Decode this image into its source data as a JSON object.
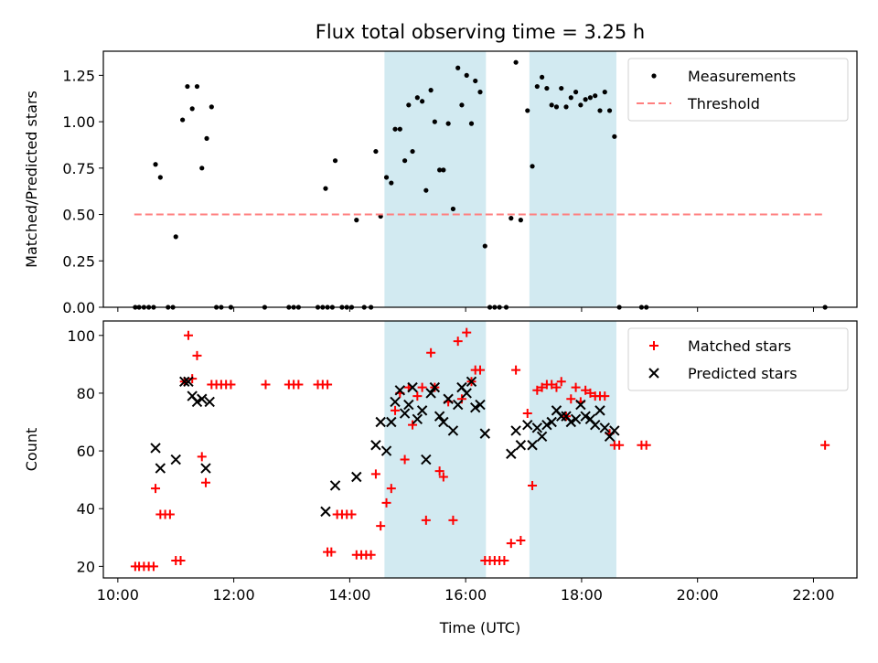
{
  "title": "Flux total observing time = 3.25 h",
  "colors": {
    "measurements": "#000000",
    "threshold": "#ff7f7f",
    "matched": "#ff0000",
    "predicted": "#000000",
    "span_fill": "#add8e6",
    "axes": "#000000"
  },
  "chart_data": [
    {
      "type": "scatter",
      "title": "Flux total observing time = 3.25 h",
      "xlabel": "",
      "ylabel": "Matched/Predicted stars",
      "x_unit": "time of day (UTC), HH:MM",
      "xlim": [
        "09:45",
        "22:45"
      ],
      "ylim": [
        0,
        1.38
      ],
      "yticks": [
        0,
        0.25,
        0.5,
        0.75,
        1.0,
        1.25
      ],
      "ytick_labels": [
        "0.00",
        "0.25",
        "0.50",
        "0.75",
        "1.00",
        "1.25"
      ],
      "xticks": [
        "10:00",
        "12:00",
        "14:00",
        "16:00",
        "18:00",
        "20:00",
        "22:00"
      ],
      "legend_position": "top-right",
      "shaded_spans": [
        [
          "14:36",
          "16:21"
        ],
        [
          "17:06",
          "18:36"
        ]
      ],
      "series": [
        {
          "name": "Measurements",
          "marker": "dot",
          "color": "#000000",
          "points": [
            [
              "10:18",
              0
            ],
            [
              "10:22",
              0
            ],
            [
              "10:27",
              0
            ],
            [
              "10:32",
              0
            ],
            [
              "10:37",
              0
            ],
            [
              "10:39",
              0.77
            ],
            [
              "10:44",
              0.7
            ],
            [
              "10:52",
              0
            ],
            [
              "10:57",
              0
            ],
            [
              "11:00",
              0.38
            ],
            [
              "11:07",
              1.01
            ],
            [
              "11:12",
              1.19
            ],
            [
              "11:17",
              1.07
            ],
            [
              "11:22",
              1.19
            ],
            [
              "11:27",
              0.75
            ],
            [
              "11:32",
              0.91
            ],
            [
              "11:37",
              1.08
            ],
            [
              "11:42",
              0
            ],
            [
              "11:47",
              0
            ],
            [
              "11:57",
              0
            ],
            [
              "12:32",
              0
            ],
            [
              "12:57",
              0
            ],
            [
              "13:02",
              0
            ],
            [
              "13:07",
              0
            ],
            [
              "13:27",
              0
            ],
            [
              "13:32",
              0
            ],
            [
              "13:37",
              0
            ],
            [
              "13:42",
              0
            ],
            [
              "13:35",
              0.64
            ],
            [
              "13:45",
              0.79
            ],
            [
              "13:52",
              0
            ],
            [
              "13:57",
              0
            ],
            [
              "14:02",
              0
            ],
            [
              "14:07",
              0.47
            ],
            [
              "14:15",
              0
            ],
            [
              "14:22",
              0
            ],
            [
              "14:27",
              0.84
            ],
            [
              "14:32",
              0.49
            ],
            [
              "14:38",
              0.7
            ],
            [
              "14:43",
              0.67
            ],
            [
              "14:47",
              0.96
            ],
            [
              "14:52",
              0.96
            ],
            [
              "14:57",
              0.79
            ],
            [
              "15:01",
              1.09
            ],
            [
              "15:05",
              0.84
            ],
            [
              "15:10",
              1.13
            ],
            [
              "15:15",
              1.11
            ],
            [
              "15:19",
              0.63
            ],
            [
              "15:24",
              1.17
            ],
            [
              "15:28",
              1.0
            ],
            [
              "15:33",
              0.74
            ],
            [
              "15:37",
              0.74
            ],
            [
              "15:42",
              0.99
            ],
            [
              "15:47",
              0.53
            ],
            [
              "15:52",
              1.29
            ],
            [
              "15:56",
              1.09
            ],
            [
              "16:01",
              1.25
            ],
            [
              "16:06",
              0.99
            ],
            [
              "16:10",
              1.22
            ],
            [
              "16:15",
              1.16
            ],
            [
              "16:20",
              0.33
            ],
            [
              "16:25",
              0
            ],
            [
              "16:30",
              0
            ],
            [
              "16:35",
              0
            ],
            [
              "16:42",
              0
            ],
            [
              "16:47",
              0.48
            ],
            [
              "16:52",
              1.32
            ],
            [
              "16:57",
              0.47
            ],
            [
              "17:04",
              1.06
            ],
            [
              "17:09",
              0.76
            ],
            [
              "17:14",
              1.19
            ],
            [
              "17:19",
              1.24
            ],
            [
              "17:24",
              1.18
            ],
            [
              "17:29",
              1.09
            ],
            [
              "17:34",
              1.08
            ],
            [
              "17:39",
              1.18
            ],
            [
              "17:44",
              1.08
            ],
            [
              "17:49",
              1.13
            ],
            [
              "17:54",
              1.16
            ],
            [
              "17:59",
              1.09
            ],
            [
              "18:04",
              1.12
            ],
            [
              "18:09",
              1.13
            ],
            [
              "18:14",
              1.14
            ],
            [
              "18:19",
              1.06
            ],
            [
              "18:24",
              1.16
            ],
            [
              "18:29",
              1.06
            ],
            [
              "18:34",
              0.92
            ],
            [
              "18:39",
              0
            ],
            [
              "19:02",
              0
            ],
            [
              "19:07",
              0
            ],
            [
              "22:12",
              0
            ]
          ]
        },
        {
          "name": "Threshold",
          "marker": "dashed-line",
          "color": "#ff7f7f",
          "points": [
            [
              "10:17",
              0.5
            ],
            [
              "22:12",
              0.5
            ]
          ]
        }
      ]
    },
    {
      "type": "scatter",
      "title": "",
      "xlabel": "Time (UTC)",
      "ylabel": "Count",
      "x_unit": "time of day (UTC), HH:MM",
      "xlim": [
        "09:45",
        "22:45"
      ],
      "ylim": [
        16,
        105
      ],
      "yticks": [
        20,
        40,
        60,
        80,
        100
      ],
      "ytick_labels": [
        "20",
        "40",
        "60",
        "80",
        "100"
      ],
      "xticks": [
        "10:00",
        "12:00",
        "14:00",
        "16:00",
        "18:00",
        "20:00",
        "22:00"
      ],
      "xtick_labels": [
        "10:00",
        "12:00",
        "14:00",
        "16:00",
        "18:00",
        "20:00",
        "22:00"
      ],
      "legend_position": "top-right",
      "shaded_spans": [
        [
          "14:36",
          "16:21"
        ],
        [
          "17:06",
          "18:36"
        ]
      ],
      "series": [
        {
          "name": "Matched stars",
          "marker": "plus",
          "color": "#ff0000",
          "points": [
            [
              "10:18",
              20
            ],
            [
              "10:22",
              20
            ],
            [
              "10:27",
              20
            ],
            [
              "10:32",
              20
            ],
            [
              "10:37",
              20
            ],
            [
              "10:39",
              47
            ],
            [
              "10:44",
              38
            ],
            [
              "10:49",
              38
            ],
            [
              "10:54",
              38
            ],
            [
              "11:00",
              22
            ],
            [
              "11:05",
              22
            ],
            [
              "11:09",
              84
            ],
            [
              "11:13",
              100
            ],
            [
              "11:17",
              85
            ],
            [
              "11:22",
              93
            ],
            [
              "11:27",
              58
            ],
            [
              "11:31",
              49
            ],
            [
              "11:37",
              83
            ],
            [
              "11:42",
              83
            ],
            [
              "11:47",
              83
            ],
            [
              "11:52",
              83
            ],
            [
              "11:57",
              83
            ],
            [
              "12:33",
              83
            ],
            [
              "12:57",
              83
            ],
            [
              "13:02",
              83
            ],
            [
              "13:07",
              83
            ],
            [
              "13:27",
              83
            ],
            [
              "13:32",
              83
            ],
            [
              "13:37",
              83
            ],
            [
              "13:37",
              25
            ],
            [
              "13:41",
              25
            ],
            [
              "13:47",
              38
            ],
            [
              "13:52",
              38
            ],
            [
              "13:57",
              38
            ],
            [
              "14:02",
              38
            ],
            [
              "14:07",
              24
            ],
            [
              "14:12",
              24
            ],
            [
              "14:17",
              24
            ],
            [
              "14:22",
              24
            ],
            [
              "14:27",
              52
            ],
            [
              "14:32",
              34
            ],
            [
              "14:38",
              42
            ],
            [
              "14:43",
              47
            ],
            [
              "14:47",
              74
            ],
            [
              "14:52",
              80
            ],
            [
              "14:57",
              57
            ],
            [
              "15:01",
              82
            ],
            [
              "15:05",
              69
            ],
            [
              "15:10",
              79
            ],
            [
              "15:15",
              82
            ],
            [
              "15:19",
              36
            ],
            [
              "15:24",
              94
            ],
            [
              "15:28",
              82
            ],
            [
              "15:33",
              53
            ],
            [
              "15:37",
              51
            ],
            [
              "15:42",
              77
            ],
            [
              "15:47",
              36
            ],
            [
              "15:52",
              98
            ],
            [
              "15:56",
              78
            ],
            [
              "16:01",
              101
            ],
            [
              "16:06",
              84
            ],
            [
              "16:10",
              88
            ],
            [
              "16:15",
              88
            ],
            [
              "16:20",
              22
            ],
            [
              "16:25",
              22
            ],
            [
              "16:30",
              22
            ],
            [
              "16:35",
              22
            ],
            [
              "16:40",
              22
            ],
            [
              "16:47",
              28
            ],
            [
              "16:52",
              88
            ],
            [
              "16:57",
              29
            ],
            [
              "17:04",
              73
            ],
            [
              "17:09",
              48
            ],
            [
              "17:14",
              81
            ],
            [
              "17:19",
              82
            ],
            [
              "17:24",
              83
            ],
            [
              "17:29",
              83
            ],
            [
              "17:34",
              82
            ],
            [
              "17:39",
              84
            ],
            [
              "17:44",
              72
            ],
            [
              "17:49",
              78
            ],
            [
              "17:54",
              82
            ],
            [
              "17:59",
              77
            ],
            [
              "18:04",
              81
            ],
            [
              "18:09",
              80
            ],
            [
              "18:14",
              79
            ],
            [
              "18:19",
              79
            ],
            [
              "18:24",
              79
            ],
            [
              "18:29",
              66
            ],
            [
              "18:34",
              62
            ],
            [
              "18:39",
              62
            ],
            [
              "19:02",
              62
            ],
            [
              "19:07",
              62
            ],
            [
              "22:12",
              62
            ]
          ]
        },
        {
          "name": "Predicted stars",
          "marker": "x",
          "color": "#000000",
          "points": [
            [
              "10:39",
              61
            ],
            [
              "10:44",
              54
            ],
            [
              "11:00",
              57
            ],
            [
              "11:09",
              84
            ],
            [
              "11:13",
              84
            ],
            [
              "11:17",
              79
            ],
            [
              "11:22",
              77
            ],
            [
              "11:27",
              78
            ],
            [
              "11:31",
              54
            ],
            [
              "11:35",
              77
            ],
            [
              "13:35",
              39
            ],
            [
              "13:45",
              48
            ],
            [
              "14:07",
              51
            ],
            [
              "14:27",
              62
            ],
            [
              "14:32",
              70
            ],
            [
              "14:38",
              60
            ],
            [
              "14:43",
              70
            ],
            [
              "14:47",
              77
            ],
            [
              "14:52",
              81
            ],
            [
              "14:57",
              73
            ],
            [
              "15:01",
              76
            ],
            [
              "15:05",
              82
            ],
            [
              "15:10",
              71
            ],
            [
              "15:15",
              74
            ],
            [
              "15:19",
              57
            ],
            [
              "15:24",
              80
            ],
            [
              "15:28",
              82
            ],
            [
              "15:33",
              72
            ],
            [
              "15:37",
              70
            ],
            [
              "15:42",
              78
            ],
            [
              "15:47",
              67
            ],
            [
              "15:52",
              76
            ],
            [
              "15:56",
              82
            ],
            [
              "16:01",
              80
            ],
            [
              "16:06",
              84
            ],
            [
              "16:10",
              75
            ],
            [
              "16:15",
              76
            ],
            [
              "16:20",
              66
            ],
            [
              "16:47",
              59
            ],
            [
              "16:52",
              67
            ],
            [
              "16:57",
              62
            ],
            [
              "17:04",
              69
            ],
            [
              "17:09",
              62
            ],
            [
              "17:14",
              68
            ],
            [
              "17:19",
              65
            ],
            [
              "17:24",
              69
            ],
            [
              "17:29",
              70
            ],
            [
              "17:34",
              74
            ],
            [
              "17:39",
              72
            ],
            [
              "17:44",
              72
            ],
            [
              "17:49",
              70
            ],
            [
              "17:54",
              71
            ],
            [
              "17:59",
              76
            ],
            [
              "18:04",
              72
            ],
            [
              "18:09",
              71
            ],
            [
              "18:14",
              69
            ],
            [
              "18:19",
              74
            ],
            [
              "18:24",
              68
            ],
            [
              "18:29",
              65
            ],
            [
              "18:34",
              67
            ]
          ]
        }
      ]
    }
  ]
}
